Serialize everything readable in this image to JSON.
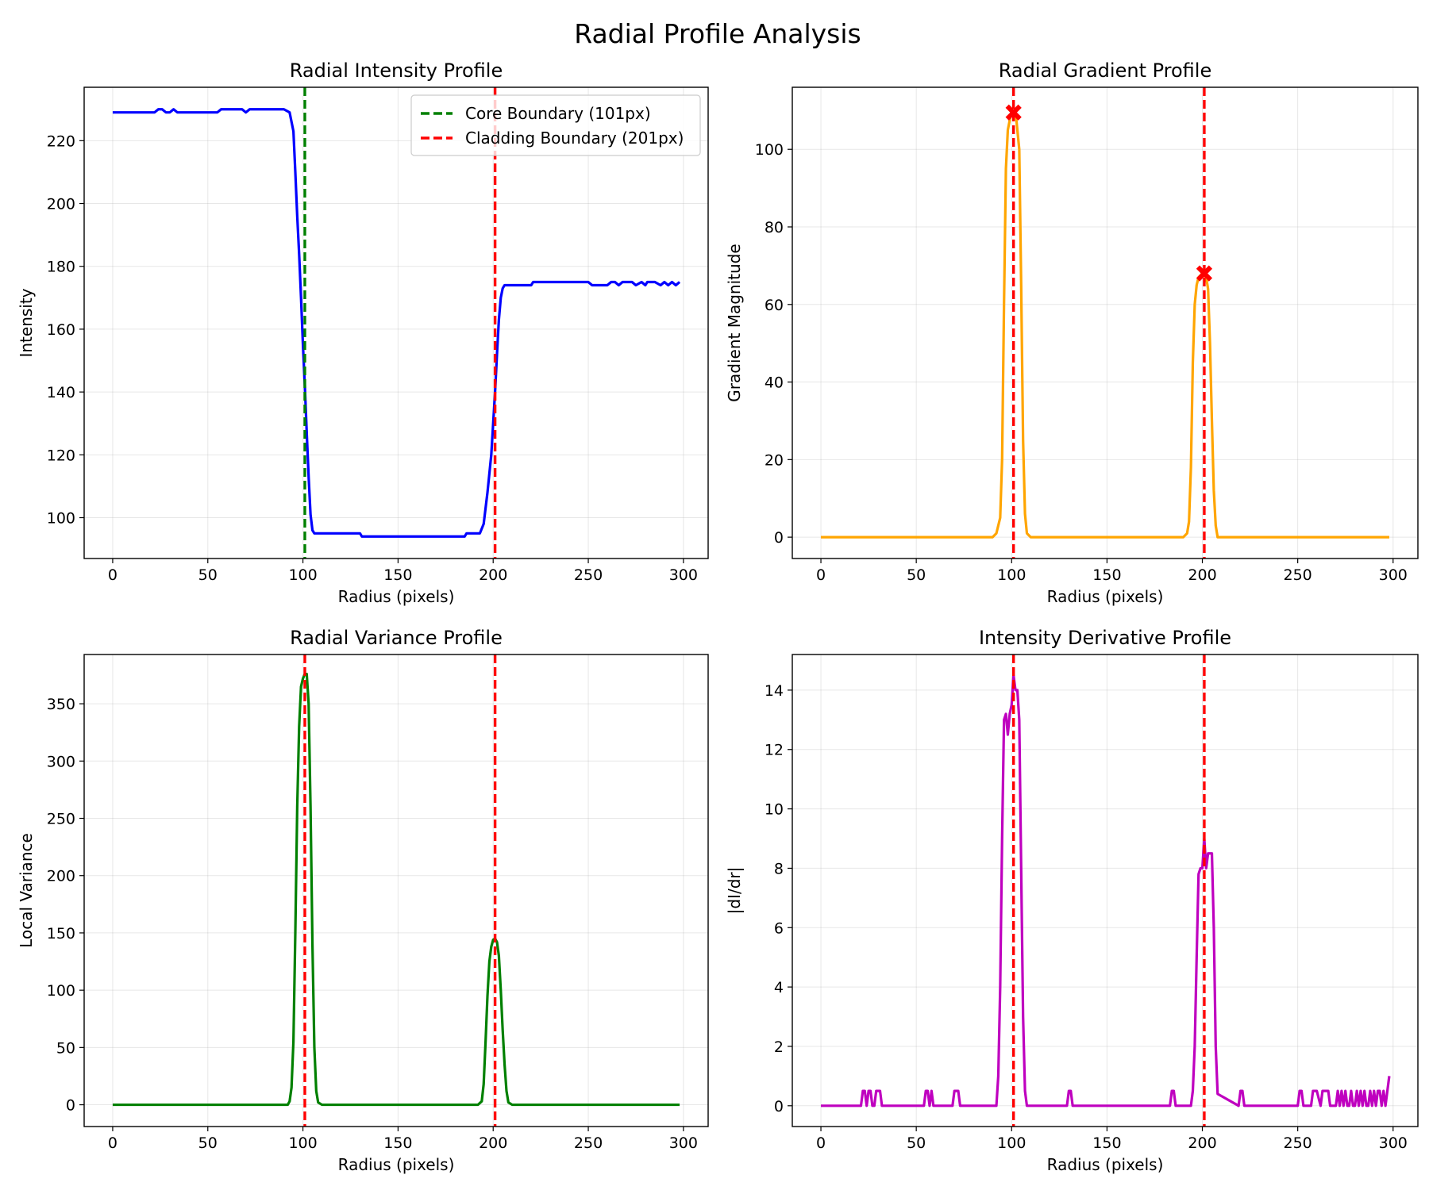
{
  "figure": {
    "title": "Radial Profile Analysis"
  },
  "chart_data": [
    {
      "type": "line",
      "title": "Radial Intensity Profile",
      "xlabel": "Radius (pixels)",
      "ylabel": "Intensity",
      "xlim": [
        -15,
        313
      ],
      "ylim": [
        87,
        237
      ],
      "xticks": [
        0,
        50,
        100,
        150,
        200,
        250,
        300
      ],
      "yticks": [
        100,
        120,
        140,
        160,
        180,
        200,
        220
      ],
      "grid": true,
      "legend": "top-right",
      "series": [
        {
          "color": "#0000ff",
          "x": [
            0,
            10,
            20,
            22,
            24,
            26,
            28,
            30,
            32,
            34,
            40,
            50,
            55,
            57,
            59,
            60,
            65,
            68,
            70,
            72,
            75,
            80,
            85,
            90,
            93,
            95,
            96,
            97,
            98,
            99,
            100,
            101,
            102,
            103,
            104,
            105,
            106,
            108,
            110,
            120,
            130,
            131,
            140,
            150,
            160,
            170,
            180,
            185,
            186,
            190,
            193,
            195,
            197,
            199,
            200,
            201,
            202,
            203,
            204,
            205,
            206,
            207,
            208,
            210,
            215,
            220,
            221,
            230,
            240,
            250,
            252,
            258,
            260,
            262,
            264,
            266,
            268,
            270,
            273,
            275,
            278,
            280,
            281,
            283,
            285,
            288,
            290,
            292,
            294,
            296,
            298
          ],
          "y": [
            229,
            229,
            229,
            229,
            230,
            230,
            229,
            229,
            230,
            229,
            229,
            229,
            229,
            230,
            230,
            230,
            230,
            230,
            229,
            230,
            230,
            230,
            230,
            230,
            229,
            223,
            210,
            196,
            184,
            170,
            155,
            142,
            127,
            113,
            101,
            96,
            95,
            95,
            95,
            95,
            95,
            94,
            94,
            94,
            94,
            94,
            94,
            94,
            95,
            95,
            95,
            98,
            108,
            120,
            130,
            140,
            152,
            163,
            170,
            173,
            174,
            174,
            174,
            174,
            174,
            174,
            175,
            175,
            175,
            175,
            174,
            174,
            174,
            175,
            175,
            174,
            175,
            175,
            175,
            174,
            175,
            174,
            175,
            175,
            175,
            174,
            175,
            174,
            175,
            174,
            175
          ]
        }
      ],
      "vlines": [
        {
          "x": 101,
          "color": "#008000",
          "name": "Core Boundary (101px)"
        },
        {
          "x": 201,
          "color": "#ff0000",
          "name": "Cladding Boundary (201px)"
        }
      ],
      "markers": []
    },
    {
      "type": "line",
      "title": "Radial Gradient Profile",
      "xlabel": "Radius (pixels)",
      "ylabel": "Gradient Magnitude",
      "xlim": [
        -15,
        313
      ],
      "ylim": [
        -5.5,
        116
      ],
      "xticks": [
        0,
        50,
        100,
        150,
        200,
        250,
        300
      ],
      "yticks": [
        0,
        20,
        40,
        60,
        80,
        100
      ],
      "grid": true,
      "legend": "none",
      "series": [
        {
          "color": "#ffa500",
          "x": [
            0,
            50,
            90,
            92,
            94,
            95,
            96,
            97,
            98,
            100,
            102,
            104,
            105,
            106,
            107,
            108,
            110,
            150,
            190,
            192,
            193,
            194,
            195,
            196,
            197,
            198,
            200,
            202,
            203,
            204,
            205,
            206,
            207,
            208,
            210,
            250,
            298
          ],
          "y": [
            0,
            0,
            0,
            1,
            5,
            20,
            60,
            95,
            105,
            110,
            110,
            100,
            65,
            25,
            6,
            1,
            0,
            0,
            0,
            1,
            4,
            18,
            45,
            60,
            65,
            67,
            68,
            67,
            64,
            50,
            30,
            12,
            3,
            0,
            0,
            0,
            0
          ]
        }
      ],
      "vlines": [
        {
          "x": 101,
          "color": "#ff0000"
        },
        {
          "x": 201,
          "color": "#ff0000"
        }
      ],
      "markers": [
        {
          "x": 101,
          "y": 109.5,
          "color": "#ff0000"
        },
        {
          "x": 201,
          "y": 68,
          "color": "#ff0000"
        }
      ]
    },
    {
      "type": "line",
      "title": "Radial Variance Profile",
      "xlabel": "Radius (pixels)",
      "ylabel": "Local Variance",
      "xlim": [
        -15,
        313
      ],
      "ylim": [
        -19,
        393
      ],
      "xticks": [
        0,
        50,
        100,
        150,
        200,
        250,
        300
      ],
      "yticks": [
        0,
        50,
        100,
        150,
        200,
        250,
        300,
        350
      ],
      "grid": true,
      "legend": "none",
      "series": [
        {
          "color": "#008000",
          "x": [
            0,
            50,
            92,
            93,
            94,
            95,
            96,
            97,
            98,
            99,
            100,
            101,
            102,
            103,
            104,
            105,
            106,
            107,
            108,
            110,
            150,
            192,
            194,
            195,
            196,
            197,
            198,
            199,
            200,
            201,
            202,
            203,
            204,
            205,
            206,
            207,
            208,
            210,
            250,
            298
          ],
          "y": [
            0,
            0,
            0,
            3,
            15,
            55,
            150,
            260,
            330,
            365,
            372,
            376,
            376,
            350,
            260,
            140,
            50,
            12,
            2,
            0,
            0,
            0,
            3,
            18,
            55,
            95,
            125,
            138,
            144,
            145,
            142,
            130,
            100,
            65,
            35,
            12,
            2,
            0,
            0,
            0
          ]
        }
      ],
      "vlines": [
        {
          "x": 101,
          "color": "#ff0000"
        },
        {
          "x": 201,
          "color": "#ff0000"
        }
      ],
      "markers": []
    },
    {
      "type": "line",
      "title": "Intensity Derivative Profile",
      "xlabel": "Radius (pixels)",
      "ylabel": "|dI/dr|",
      "xlim": [
        -15,
        313
      ],
      "ylim": [
        -0.7,
        15.2
      ],
      "xticks": [
        0,
        50,
        100,
        150,
        200,
        250,
        300
      ],
      "yticks": [
        0,
        2,
        4,
        6,
        8,
        10,
        12,
        14
      ],
      "grid": true,
      "legend": "none",
      "series": [
        {
          "color": "#bf00bf",
          "x": [
            0,
            21,
            22,
            23,
            24,
            25,
            26,
            27,
            28,
            29,
            30,
            31,
            32,
            33,
            54,
            55,
            56,
            57,
            58,
            59,
            69,
            70,
            71,
            72,
            73,
            92,
            93,
            94,
            95,
            96,
            97,
            98,
            99,
            100,
            101,
            102,
            103,
            104,
            105,
            106,
            107,
            108,
            109,
            129,
            130,
            131,
            132,
            183,
            184,
            185,
            186,
            194,
            195,
            196,
            197,
            198,
            199,
            200,
            201,
            202,
            203,
            204,
            205,
            206,
            207,
            208,
            219,
            220,
            221,
            222,
            250,
            251,
            252,
            253,
            257,
            258,
            259,
            260,
            262,
            263,
            264,
            265,
            266,
            267,
            268,
            270,
            271,
            272,
            273,
            274,
            275,
            276,
            277,
            278,
            279,
            280,
            281,
            282,
            283,
            284,
            285,
            286,
            287,
            288,
            289,
            290,
            291,
            292,
            293,
            294,
            295,
            296,
            297,
            298
          ],
          "y": [
            0,
            0,
            0.5,
            0.5,
            0,
            0.5,
            0.5,
            0,
            0,
            0.5,
            0.5,
            0.5,
            0,
            0,
            0,
            0.5,
            0.5,
            0,
            0.5,
            0,
            0,
            0.5,
            0.5,
            0.5,
            0,
            0,
            1,
            4,
            9,
            13,
            13.2,
            12.5,
            13.2,
            13.5,
            14.5,
            14,
            14,
            13,
            8,
            3,
            0.5,
            0,
            0,
            0,
            0.5,
            0.5,
            0,
            0,
            0.5,
            0.5,
            0,
            0,
            0.5,
            2,
            5,
            7.8,
            8,
            8,
            9,
            8,
            8.5,
            8.5,
            8.5,
            6,
            2,
            0.4,
            0,
            0.5,
            0.5,
            0,
            0,
            0.5,
            0.5,
            0,
            0,
            0.5,
            0.5,
            0.5,
            0,
            0.5,
            0.5,
            0.5,
            0.5,
            0,
            0,
            0,
            0.5,
            0,
            0.5,
            0,
            0.5,
            0,
            0,
            0.5,
            0,
            0,
            0.5,
            0,
            0.5,
            0,
            0.5,
            0,
            0,
            0.5,
            0,
            0.5,
            0,
            0.5,
            0.5,
            0,
            0.5,
            0,
            0.5,
            1
          ]
        }
      ],
      "vlines": [
        {
          "x": 101,
          "color": "#ff0000"
        },
        {
          "x": 201,
          "color": "#ff0000"
        }
      ],
      "markers": []
    }
  ]
}
